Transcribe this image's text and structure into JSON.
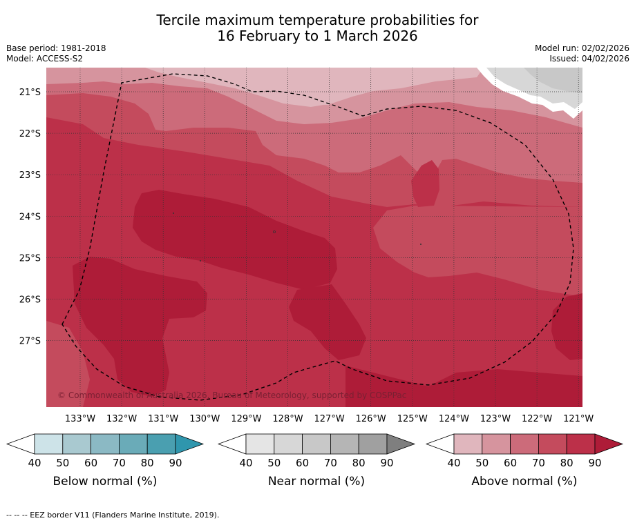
{
  "title": {
    "line1": "Tercile maximum temperature probabilities for",
    "line2": "16 February to 1 March 2026"
  },
  "meta": {
    "base_period": "Base period: 1981-2018",
    "model": "Model: ACCESS-S2",
    "model_run": "Model run: 02/02/2026",
    "issued": "Issued: 04/02/2026"
  },
  "map": {
    "copyright": "© Commonwealth of Australia 2026, Bureau of Meteorology, supported by COSPPac",
    "lon_labels": [
      "133°W",
      "132°W",
      "131°W",
      "130°W",
      "129°W",
      "128°W",
      "127°W",
      "126°W",
      "125°W",
      "124°W",
      "123°W",
      "122°W",
      "121°W"
    ],
    "lat_labels": [
      "21°S",
      "22°S",
      "23°S",
      "24°S",
      "25°S",
      "26°S",
      "27°S"
    ],
    "colors": {
      "above_40": "#e0b6bd",
      "above_50": "#d6949e",
      "above_60": "#cc6b7a",
      "above_70": "#c44b5d",
      "above_80": "#bc3049",
      "above_90": "#ae1c38",
      "near_60": "#c8c8c8",
      "near_50": "#d7d7d7"
    }
  },
  "colorbars": [
    {
      "name": "below",
      "title": "Below normal (%)",
      "ticks": [
        "40",
        "50",
        "60",
        "70",
        "80",
        "90"
      ],
      "colors": [
        "#cde3e8",
        "#a9c9d0",
        "#8bb9c4",
        "#6aabb8",
        "#4a9fb0",
        "#2f96ad"
      ]
    },
    {
      "name": "near",
      "title": "Near normal (%)",
      "ticks": [
        "40",
        "50",
        "60",
        "70",
        "80",
        "90"
      ],
      "colors": [
        "#e5e5e5",
        "#d7d7d7",
        "#c8c8c8",
        "#b5b5b5",
        "#a0a0a0",
        "#7f7f7f"
      ]
    },
    {
      "name": "above",
      "title": "Above normal (%)",
      "ticks": [
        "40",
        "50",
        "60",
        "70",
        "80",
        "90"
      ],
      "colors": [
        "#e0b6bd",
        "#d6949e",
        "#cc6b7a",
        "#c44b5d",
        "#bc3049",
        "#ae1c38"
      ]
    }
  ],
  "legend": {
    "footnote": "-- -- -- EEZ border V11 (Flanders Marine Institute, 2019)."
  }
}
